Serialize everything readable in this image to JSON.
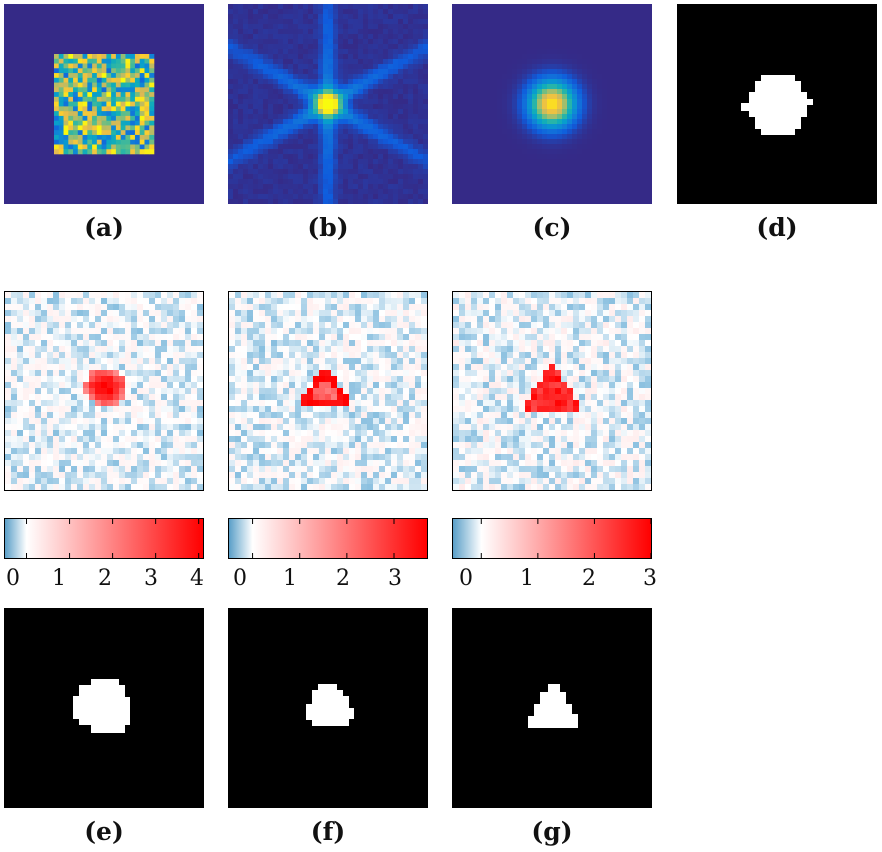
{
  "panels_top": [
    {
      "id": "a",
      "caption": "(a)",
      "kind": "random-pattern"
    },
    {
      "id": "b",
      "caption": "(b)",
      "kind": "diffraction-star"
    },
    {
      "id": "c",
      "caption": "(c)",
      "kind": "gaussian-spot"
    },
    {
      "id": "d",
      "caption": "(d)",
      "kind": "mask-hexagon"
    }
  ],
  "heatmaps": [
    {
      "id": "h1",
      "shape": "blob"
    },
    {
      "id": "h2",
      "shape": "triangle-small"
    },
    {
      "id": "h3",
      "shape": "triangle"
    }
  ],
  "colorbars": [
    {
      "ticks": [
        "0",
        "1",
        "2",
        "3",
        "4"
      ],
      "max": 4.1
    },
    {
      "ticks": [
        "0",
        "1",
        "2",
        "3"
      ],
      "max": 3.7
    },
    {
      "ticks": [
        "0",
        "1",
        "2",
        "3"
      ],
      "max": 3.0
    }
  ],
  "panels_bottom": [
    {
      "id": "e",
      "caption": "(e)",
      "kind": "mask-blob"
    },
    {
      "id": "f",
      "caption": "(f)",
      "kind": "mask-rounded-triangle"
    },
    {
      "id": "g",
      "caption": "(g)",
      "kind": "mask-triangle"
    }
  ],
  "colors": {
    "parula_bg": "#352a87",
    "mask_bg": "#000000",
    "mask_fg": "#ffffff",
    "heat_pos": "#ff0000",
    "heat_neg": "#5a9fc8"
  }
}
